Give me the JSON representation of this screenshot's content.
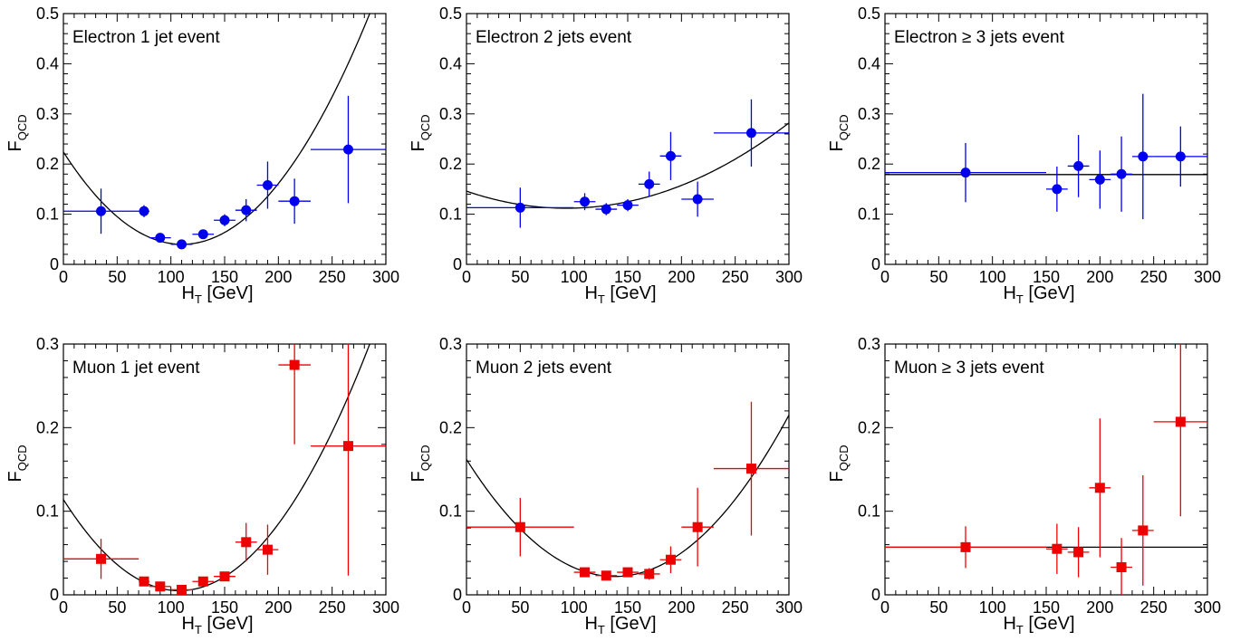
{
  "figure": {
    "x_axis_label": "H",
    "x_axis_label_sub": "T",
    "x_axis_label_unit": "[GeV]",
    "y_axis_label": "F",
    "y_axis_label_sub": "QCD"
  },
  "colors": {
    "electron": "#0000ee",
    "muon": "#ee0000",
    "fit": "#000000"
  },
  "chart_data": [
    {
      "type": "scatter",
      "title": "Electron 1 jet event",
      "marker": "circle",
      "color": "#0000ee",
      "xlabel": "H_T [GeV]",
      "ylabel": "F_QCD",
      "xlim": [
        0,
        300
      ],
      "ylim": [
        0,
        0.5
      ],
      "xticks": [
        0,
        50,
        100,
        150,
        200,
        250,
        300
      ],
      "yticks": [
        0,
        0.1,
        0.2,
        0.3,
        0.4,
        0.5
      ],
      "ytick_labels": [
        "0",
        "0.1",
        "0.2",
        "0.3",
        "0.4",
        "0.5"
      ],
      "points": [
        {
          "x": 35,
          "y": 0.106,
          "xerr": 35,
          "yerr": 0.045
        },
        {
          "x": 75,
          "y": 0.106,
          "xerr": 5,
          "yerr": 0.012
        },
        {
          "x": 90,
          "y": 0.053,
          "xerr": 10,
          "yerr": 0.006
        },
        {
          "x": 110,
          "y": 0.04,
          "xerr": 10,
          "yerr": 0.006
        },
        {
          "x": 130,
          "y": 0.06,
          "xerr": 10,
          "yerr": 0.008
        },
        {
          "x": 150,
          "y": 0.088,
          "xerr": 10,
          "yerr": 0.012
        },
        {
          "x": 170,
          "y": 0.108,
          "xerr": 10,
          "yerr": 0.022
        },
        {
          "x": 190,
          "y": 0.158,
          "xerr": 10,
          "yerr": 0.047
        },
        {
          "x": 215,
          "y": 0.126,
          "xerr": 15,
          "yerr": 0.045
        },
        {
          "x": 265,
          "y": 0.229,
          "xerr": 35,
          "yerr": 0.107
        }
      ],
      "fit": {
        "shape": "quadratic",
        "through": [
          [
            0,
            0.224
          ],
          [
            110,
            0.04
          ],
          [
            285,
            0.5
          ]
        ]
      }
    },
    {
      "type": "scatter",
      "title": "Electron 2 jets event",
      "marker": "circle",
      "color": "#0000ee",
      "xlabel": "H_T [GeV]",
      "ylabel": "F_QCD",
      "xlim": [
        0,
        300
      ],
      "ylim": [
        0,
        0.5
      ],
      "xticks": [
        0,
        50,
        100,
        150,
        200,
        250,
        300
      ],
      "yticks": [
        0,
        0.1,
        0.2,
        0.3,
        0.4,
        0.5
      ],
      "ytick_labels": [
        "0",
        "0.1",
        "0.2",
        "0.3",
        "0.4",
        "0.5"
      ],
      "points": [
        {
          "x": 50,
          "y": 0.113,
          "xerr": 50,
          "yerr": 0.04
        },
        {
          "x": 110,
          "y": 0.125,
          "xerr": 10,
          "yerr": 0.017
        },
        {
          "x": 130,
          "y": 0.11,
          "xerr": 10,
          "yerr": 0.012
        },
        {
          "x": 150,
          "y": 0.118,
          "xerr": 10,
          "yerr": 0.012
        },
        {
          "x": 170,
          "y": 0.16,
          "xerr": 10,
          "yerr": 0.025
        },
        {
          "x": 190,
          "y": 0.216,
          "xerr": 10,
          "yerr": 0.048
        },
        {
          "x": 215,
          "y": 0.13,
          "xerr": 15,
          "yerr": 0.035
        },
        {
          "x": 265,
          "y": 0.262,
          "xerr": 35,
          "yerr": 0.067
        }
      ],
      "fit": {
        "shape": "quadratic",
        "through": [
          [
            0,
            0.146
          ],
          [
            88,
            0.112
          ],
          [
            300,
            0.282
          ]
        ]
      }
    },
    {
      "type": "scatter",
      "title": "Electron ≥ 3 jets event",
      "marker": "circle",
      "color": "#0000ee",
      "xlabel": "H_T [GeV]",
      "ylabel": "F_QCD",
      "xlim": [
        0,
        300
      ],
      "ylim": [
        0,
        0.5
      ],
      "xticks": [
        0,
        50,
        100,
        150,
        200,
        250,
        300
      ],
      "yticks": [
        0,
        0.1,
        0.2,
        0.3,
        0.4,
        0.5
      ],
      "ytick_labels": [
        "0",
        "0.1",
        "0.2",
        "0.3",
        "0.4",
        "0.5"
      ],
      "points": [
        {
          "x": 75,
          "y": 0.183,
          "xerr": 75,
          "yerr": 0.059
        },
        {
          "x": 160,
          "y": 0.15,
          "xerr": 10,
          "yerr": 0.045
        },
        {
          "x": 180,
          "y": 0.196,
          "xerr": 10,
          "yerr": 0.062
        },
        {
          "x": 200,
          "y": 0.169,
          "xerr": 10,
          "yerr": 0.058
        },
        {
          "x": 220,
          "y": 0.18,
          "xerr": 10,
          "yerr": 0.075
        },
        {
          "x": 240,
          "y": 0.215,
          "xerr": 10,
          "yerr": 0.125
        },
        {
          "x": 275,
          "y": 0.215,
          "xerr": 25,
          "yerr": 0.06
        }
      ],
      "fit": {
        "shape": "constant",
        "value": 0.179
      }
    },
    {
      "type": "scatter",
      "title": "Muon 1 jet event",
      "marker": "square",
      "color": "#ee0000",
      "xlabel": "H_T [GeV]",
      "ylabel": "F_QCD",
      "xlim": [
        0,
        300
      ],
      "ylim": [
        0,
        0.3
      ],
      "xticks": [
        0,
        50,
        100,
        150,
        200,
        250,
        300
      ],
      "yticks": [
        0,
        0.1,
        0.2,
        0.3
      ],
      "ytick_labels": [
        "0",
        "0.1",
        "0.2",
        "0.3"
      ],
      "points": [
        {
          "x": 35,
          "y": 0.043,
          "xerr": 35,
          "yerr": 0.024
        },
        {
          "x": 75,
          "y": 0.016,
          "xerr": 5,
          "yerr": 0.004
        },
        {
          "x": 90,
          "y": 0.01,
          "xerr": 10,
          "yerr": 0.003
        },
        {
          "x": 110,
          "y": 0.006,
          "xerr": 10,
          "yerr": 0.003
        },
        {
          "x": 130,
          "y": 0.016,
          "xerr": 10,
          "yerr": 0.004
        },
        {
          "x": 150,
          "y": 0.022,
          "xerr": 10,
          "yerr": 0.005
        },
        {
          "x": 170,
          "y": 0.063,
          "xerr": 10,
          "yerr": 0.023
        },
        {
          "x": 190,
          "y": 0.054,
          "xerr": 10,
          "yerr": 0.03
        },
        {
          "x": 215,
          "y": 0.275,
          "xerr": 15,
          "yerr": 0.095
        },
        {
          "x": 265,
          "y": 0.178,
          "xerr": 35,
          "yerr": 0.155
        }
      ],
      "fit": {
        "shape": "quadratic",
        "through": [
          [
            0,
            0.114
          ],
          [
            105,
            0.005
          ],
          [
            285,
            0.3
          ]
        ]
      }
    },
    {
      "type": "scatter",
      "title": "Muon 2 jets event",
      "marker": "square",
      "color": "#ee0000",
      "xlabel": "H_T [GeV]",
      "ylabel": "F_QCD",
      "xlim": [
        0,
        300
      ],
      "ylim": [
        0,
        0.3
      ],
      "xticks": [
        0,
        50,
        100,
        150,
        200,
        250,
        300
      ],
      "yticks": [
        0,
        0.1,
        0.2,
        0.3
      ],
      "ytick_labels": [
        "0",
        "0.1",
        "0.2",
        "0.3"
      ],
      "points": [
        {
          "x": 50,
          "y": 0.081,
          "xerr": 50,
          "yerr": 0.035
        },
        {
          "x": 110,
          "y": 0.027,
          "xerr": 10,
          "yerr": 0.004
        },
        {
          "x": 130,
          "y": 0.023,
          "xerr": 10,
          "yerr": 0.004
        },
        {
          "x": 150,
          "y": 0.027,
          "xerr": 10,
          "yerr": 0.005
        },
        {
          "x": 170,
          "y": 0.025,
          "xerr": 10,
          "yerr": 0.007
        },
        {
          "x": 190,
          "y": 0.042,
          "xerr": 10,
          "yerr": 0.016
        },
        {
          "x": 215,
          "y": 0.081,
          "xerr": 15,
          "yerr": 0.047
        },
        {
          "x": 265,
          "y": 0.151,
          "xerr": 35,
          "yerr": 0.08
        }
      ],
      "fit": {
        "shape": "quadratic",
        "through": [
          [
            0,
            0.162
          ],
          [
            140,
            0.022
          ],
          [
            300,
            0.215
          ]
        ]
      }
    },
    {
      "type": "scatter",
      "title": "Muon ≥ 3 jets event",
      "marker": "square",
      "color": "#ee0000",
      "xlabel": "H_T [GeV]",
      "ylabel": "F_QCD",
      "xlim": [
        0,
        300
      ],
      "ylim": [
        0,
        0.3
      ],
      "xticks": [
        0,
        50,
        100,
        150,
        200,
        250,
        300
      ],
      "yticks": [
        0,
        0.1,
        0.2,
        0.3
      ],
      "ytick_labels": [
        "0",
        "0.1",
        "0.2",
        "0.3"
      ],
      "points": [
        {
          "x": 75,
          "y": 0.057,
          "xerr": 75,
          "yerr": 0.025
        },
        {
          "x": 160,
          "y": 0.055,
          "xerr": 10,
          "yerr": 0.03
        },
        {
          "x": 180,
          "y": 0.051,
          "xerr": 10,
          "yerr": 0.03
        },
        {
          "x": 200,
          "y": 0.128,
          "xerr": 10,
          "yerr": 0.083
        },
        {
          "x": 220,
          "y": 0.033,
          "xerr": 10,
          "yerr": 0.035
        },
        {
          "x": 240,
          "y": 0.077,
          "xerr": 10,
          "yerr": 0.066
        },
        {
          "x": 275,
          "y": 0.207,
          "xerr": 25,
          "yerr": 0.113
        }
      ],
      "fit": {
        "shape": "constant",
        "value": 0.057
      }
    }
  ]
}
